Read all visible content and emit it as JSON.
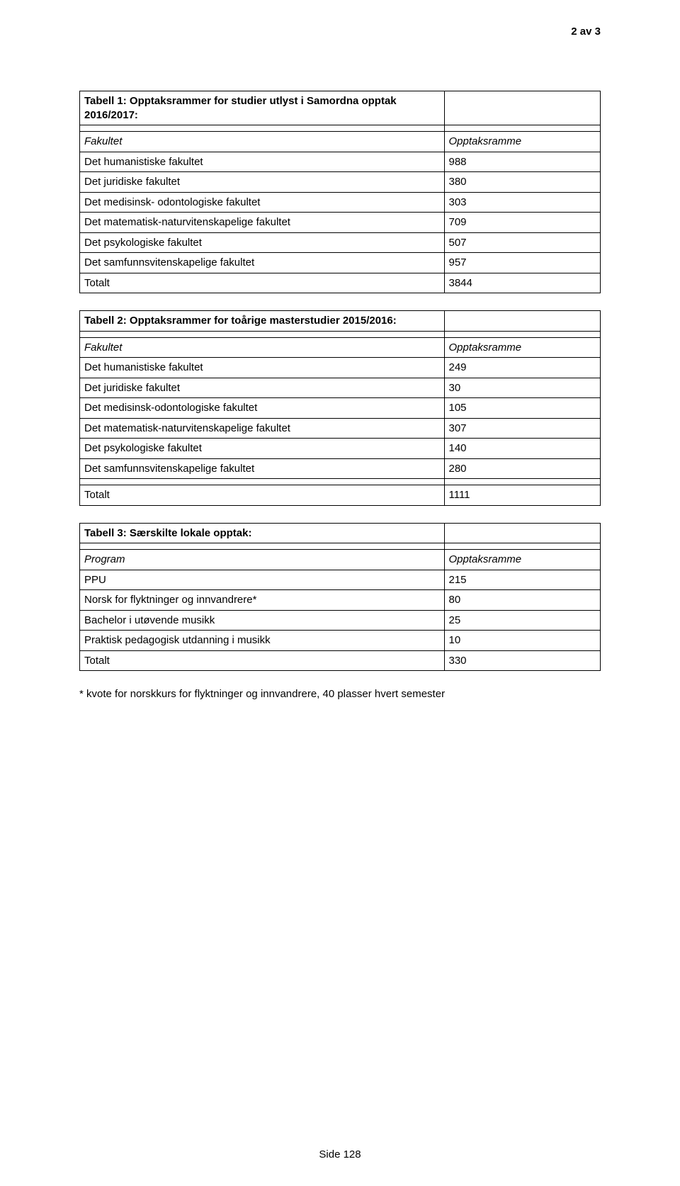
{
  "page_number": "2 av 3",
  "side": "Side 128",
  "footnote": "* kvote for norskkurs for flyktninger og innvandrere, 40 plasser hvert semester",
  "table1": {
    "title": "Tabell 1: Opptaksrammer for studier utlyst i Samordna opptak 2016/2017:",
    "header_left": "Fakultet",
    "header_right": "Opptaksramme",
    "rows": [
      {
        "label": "Det humanistiske fakultet",
        "value": "988"
      },
      {
        "label": "Det juridiske fakultet",
        "value": "380"
      },
      {
        "label": "Det medisinsk- odontologiske fakultet",
        "value": "303"
      },
      {
        "label": "Det matematisk-naturvitenskapelige fakultet",
        "value": "709"
      },
      {
        "label": "Det psykologiske fakultet",
        "value": "507"
      },
      {
        "label": "Det samfunnsvitenskapelige fakultet",
        "value": "957"
      }
    ],
    "total_label": "Totalt",
    "total_value": "3844"
  },
  "table2": {
    "title": "Tabell 2: Opptaksrammer for toårige masterstudier 2015/2016:",
    "header_left": "Fakultet",
    "header_right": "Opptaksramme",
    "rows": [
      {
        "label": "Det humanistiske fakultet",
        "value": "249"
      },
      {
        "label": "Det juridiske fakultet",
        "value": "30"
      },
      {
        "label": "Det medisinsk-odontologiske fakultet",
        "value": "105"
      },
      {
        "label": "Det matematisk-naturvitenskapelige fakultet",
        "value": "307"
      },
      {
        "label": "Det psykologiske fakultet",
        "value": "140"
      },
      {
        "label": "Det samfunnsvitenskapelige fakultet",
        "value": "280"
      }
    ],
    "total_label": "Totalt",
    "total_value": "1111"
  },
  "table3": {
    "title": "Tabell 3: Særskilte lokale opptak:",
    "header_left": "Program",
    "header_right": "Opptaksramme",
    "rows": [
      {
        "label": "PPU",
        "value": "215"
      },
      {
        "label": "Norsk for flyktninger og innvandrere*",
        "value": "80"
      },
      {
        "label": "Bachelor i utøvende musikk",
        "value": "25"
      },
      {
        "label": "Praktisk pedagogisk utdanning i musikk",
        "value": "10"
      }
    ],
    "total_label": "Totalt",
    "total_value": "330"
  }
}
